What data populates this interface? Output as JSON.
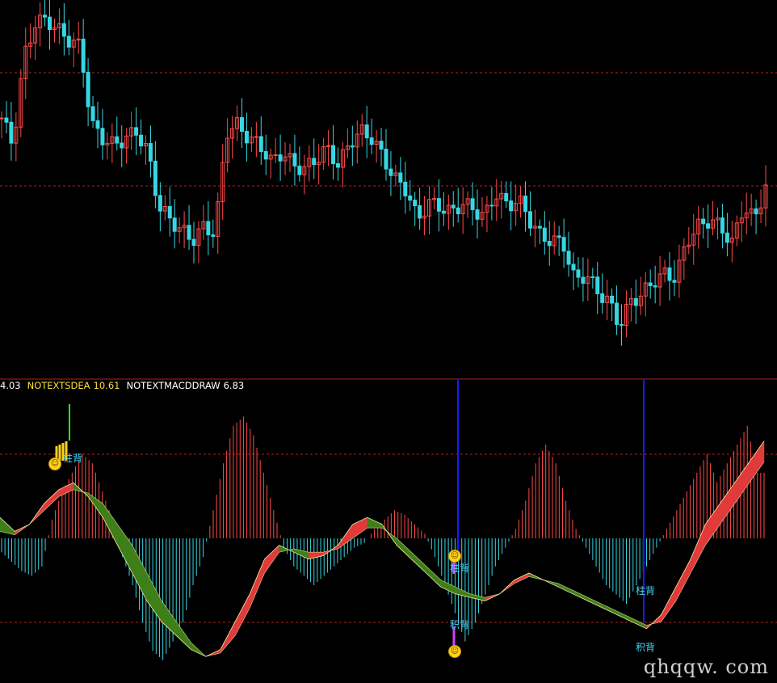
{
  "indicator_header": {
    "item1": "4.03",
    "item2_name": "NOTEXTSDEA",
    "item2_value": "10.61",
    "item3_name": "NOTEXTMACDDRAW",
    "item3_value": "6.83"
  },
  "markers": {
    "zhu_bei": "柱背",
    "ji_bei": "积背"
  },
  "watermark": "qhqqw. com",
  "colors": {
    "background": "#000000",
    "up_candle": "#ff4a4a",
    "down_candle": "#36d7e3",
    "grid": "#b22222",
    "separator": "#b02020",
    "macd_pos": "#ff4a4a",
    "macd_neg": "#36d7e3",
    "band_rise": "#e03a3a",
    "band_fall": "#3f7f1a",
    "signal_line": "#1a1aff",
    "green_line": "#22ff22",
    "magenta_line": "#d040ff",
    "text_yellow": "#ffdf3a",
    "text_white": "#ffffff"
  },
  "chart_data": [
    {
      "type": "candlestick",
      "title": "",
      "description_points": "close price path (relative, 0 = lowest, 100 = highest shown)",
      "closes": [
        70,
        62,
        88,
        98,
        99,
        96,
        93,
        91,
        68,
        64,
        62,
        64,
        66,
        60,
        44,
        40,
        37,
        34,
        38,
        36,
        66,
        68,
        64,
        62,
        57,
        60,
        56,
        55,
        58,
        61,
        56,
        63,
        66,
        64,
        58,
        52,
        49,
        40,
        45,
        44,
        42,
        45,
        43,
        41,
        48,
        44,
        46,
        40,
        35,
        34,
        33,
        22,
        24,
        19,
        16,
        9,
        16,
        18,
        22,
        24,
        23,
        34,
        38,
        40,
        38,
        33,
        44,
        40,
        50
      ]
    },
    {
      "type": "macd",
      "title": "",
      "histogram": [
        -3,
        -5,
        -7,
        -8,
        -6,
        4,
        10,
        14,
        18,
        16,
        10,
        4,
        -4,
        -10,
        -18,
        -24,
        -26,
        -22,
        -18,
        -10,
        -4,
        6,
        16,
        24,
        26,
        22,
        14,
        6,
        -2,
        -6,
        -8,
        -10,
        -8,
        -6,
        -4,
        -2,
        -1,
        2,
        4,
        6,
        5,
        3,
        1,
        -4,
        -10,
        -16,
        -22,
        -18,
        -12,
        -6,
        -2,
        2,
        8,
        16,
        20,
        16,
        8,
        2,
        -2,
        -6,
        -10,
        -12,
        -14,
        -10,
        -6,
        -2,
        2,
        6,
        10,
        14,
        18,
        12,
        16,
        20,
        24,
        14
      ],
      "dif": [
        6,
        2,
        4,
        10,
        14,
        16,
        12,
        6,
        -2,
        -10,
        -18,
        -24,
        -28,
        -32,
        -34,
        -32,
        -24,
        -16,
        -6,
        -2,
        -4,
        -6,
        -5,
        -2,
        4,
        6,
        4,
        -2,
        -6,
        -10,
        -14,
        -16,
        -17,
        -18,
        -16,
        -12,
        -10,
        -12,
        -14,
        -16,
        -18,
        -20,
        -22,
        -24,
        -26,
        -22,
        -14,
        -6,
        4,
        10,
        16,
        22,
        28
      ],
      "dea": [
        2,
        1,
        4,
        8,
        12,
        14,
        13,
        10,
        4,
        -2,
        -10,
        -18,
        -24,
        -30,
        -34,
        -33,
        -28,
        -20,
        -10,
        -4,
        -3,
        -4,
        -4,
        -3,
        0,
        3,
        3,
        0,
        -4,
        -8,
        -12,
        -14,
        -16,
        -17,
        -16,
        -13,
        -11,
        -12,
        -13,
        -15,
        -17,
        -19,
        -21,
        -23,
        -25,
        -24,
        -18,
        -10,
        -2,
        4,
        10,
        16,
        22
      ]
    }
  ]
}
